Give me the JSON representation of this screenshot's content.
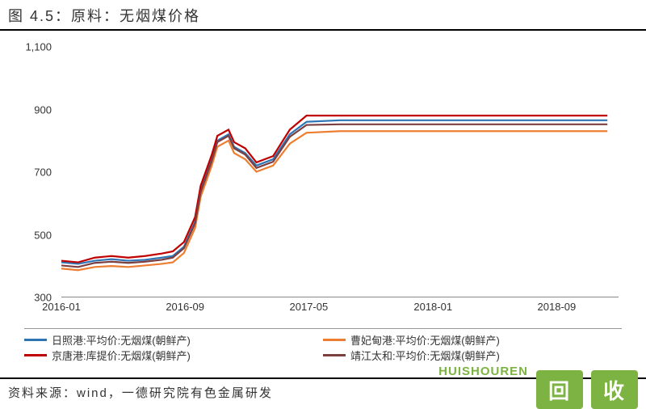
{
  "title": "图 4.5：原料：无烟煤价格",
  "title_fontsize": 18,
  "title_color": "#333333",
  "source": "资料来源：wind，一德研究院有色金属研发",
  "watermark": {
    "text": "HUISHOUREN",
    "color": "#7cb342",
    "box1": "回",
    "box2": "收",
    "box_bg": "#7cb342"
  },
  "chart": {
    "type": "line",
    "background_color": "#ffffff",
    "axis_color": "#888888",
    "label_color": "#333333",
    "label_fontsize": 13,
    "ylim": [
      300,
      1100
    ],
    "yticks": [
      300,
      500,
      700,
      900,
      1100
    ],
    "x_categories": [
      "2016-01",
      "2016-09",
      "2017-05",
      "2018-01",
      "2018-09"
    ],
    "x_positions": [
      0,
      0.222,
      0.444,
      0.667,
      0.889
    ],
    "line_width": 2.2,
    "series": [
      {
        "name": "日照港:平均价:无烟煤(朝鲜产)",
        "color": "#2e75b6",
        "x": [
          0.0,
          0.03,
          0.06,
          0.09,
          0.12,
          0.15,
          0.18,
          0.2,
          0.22,
          0.24,
          0.25,
          0.27,
          0.28,
          0.3,
          0.31,
          0.33,
          0.35,
          0.38,
          0.41,
          0.44,
          0.5,
          0.6,
          0.7,
          0.8,
          0.9,
          0.98
        ],
        "y": [
          410,
          405,
          415,
          420,
          415,
          418,
          425,
          430,
          460,
          540,
          640,
          740,
          800,
          820,
          780,
          760,
          720,
          740,
          820,
          860,
          865,
          865,
          865,
          865,
          865,
          865
        ]
      },
      {
        "name": "曹妃甸港:平均价:无烟煤(朝鲜产)",
        "color": "#ed7d31",
        "x": [
          0.0,
          0.03,
          0.06,
          0.09,
          0.12,
          0.15,
          0.18,
          0.2,
          0.22,
          0.24,
          0.25,
          0.27,
          0.28,
          0.3,
          0.31,
          0.33,
          0.35,
          0.38,
          0.41,
          0.44,
          0.5,
          0.6,
          0.7,
          0.8,
          0.9,
          0.98
        ],
        "y": [
          390,
          385,
          395,
          398,
          395,
          400,
          405,
          410,
          440,
          520,
          620,
          720,
          780,
          800,
          760,
          740,
          700,
          720,
          790,
          825,
          830,
          830,
          830,
          830,
          830,
          830
        ]
      },
      {
        "name": "京唐港:库提价:无烟煤(朝鲜产)",
        "color": "#c00000",
        "x": [
          0.0,
          0.03,
          0.06,
          0.09,
          0.12,
          0.15,
          0.18,
          0.2,
          0.22,
          0.24,
          0.25,
          0.27,
          0.28,
          0.3,
          0.31,
          0.33,
          0.35,
          0.38,
          0.41,
          0.44,
          0.5,
          0.6,
          0.7,
          0.8,
          0.9,
          0.98
        ],
        "y": [
          415,
          410,
          425,
          430,
          425,
          430,
          438,
          445,
          475,
          555,
          655,
          755,
          815,
          835,
          795,
          775,
          730,
          750,
          835,
          880,
          880,
          880,
          880,
          880,
          880,
          880
        ]
      },
      {
        "name": "靖江太和:平均价:无烟煤(朝鲜产)",
        "color": "#7b3f3f",
        "x": [
          0.0,
          0.03,
          0.06,
          0.09,
          0.12,
          0.15,
          0.18,
          0.2,
          0.22,
          0.24,
          0.25,
          0.27,
          0.28,
          0.3,
          0.31,
          0.33,
          0.35,
          0.38,
          0.41,
          0.44,
          0.5,
          0.6,
          0.7,
          0.8,
          0.9,
          0.98
        ],
        "y": [
          400,
          395,
          408,
          412,
          408,
          412,
          418,
          425,
          455,
          535,
          635,
          735,
          795,
          815,
          775,
          755,
          712,
          732,
          812,
          850,
          852,
          852,
          852,
          852,
          852,
          852
        ]
      }
    ]
  }
}
